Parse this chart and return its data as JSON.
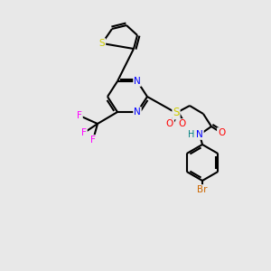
{
  "background_color": "#e8e8e8",
  "bond_color": "#000000",
  "atom_colors": {
    "N": "#0000ff",
    "O": "#ff0000",
    "S_sulfonyl": "#cccc00",
    "S_thiophene": "#cccc00",
    "F": "#ff00ff",
    "Br": "#cc6600",
    "H": "#008080",
    "C": "#000000"
  },
  "figsize": [
    3.0,
    3.0
  ],
  "dpi": 100
}
